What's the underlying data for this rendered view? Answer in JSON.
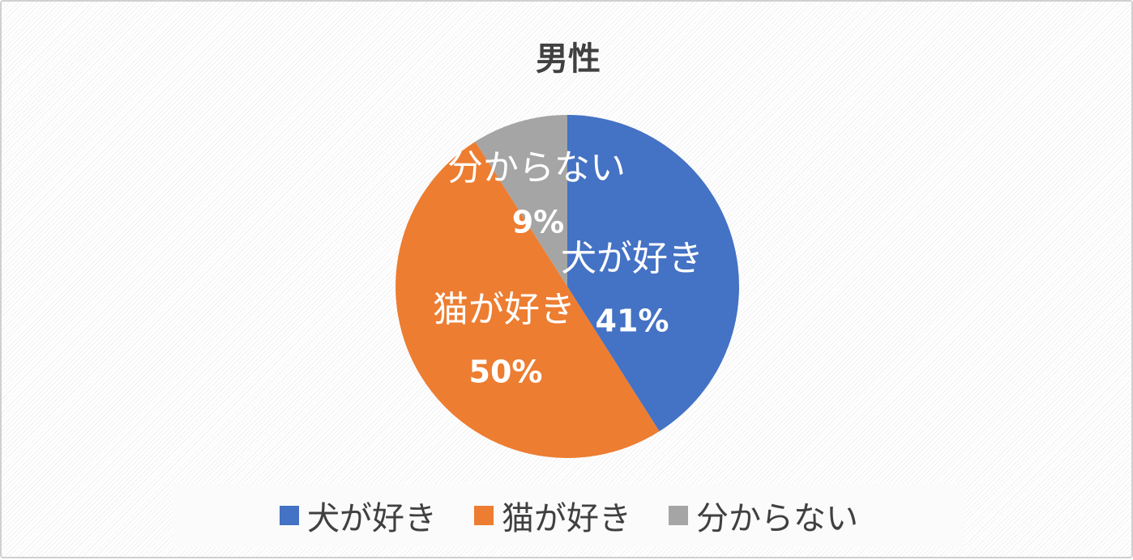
{
  "chart_data": {
    "type": "pie",
    "title": "男性",
    "start_angle": "top, clockwise",
    "slices": [
      {
        "label": "犬が好き",
        "value": 41,
        "value_label": "41%",
        "color": "#4472C4"
      },
      {
        "label": "猫が好き",
        "value": 50,
        "value_label": "50%",
        "color": "#ED7D31"
      },
      {
        "label": "分からない",
        "value": 9,
        "value_label": "9%",
        "color": "#A5A5A5"
      }
    ],
    "legend_placement": "bottom"
  }
}
